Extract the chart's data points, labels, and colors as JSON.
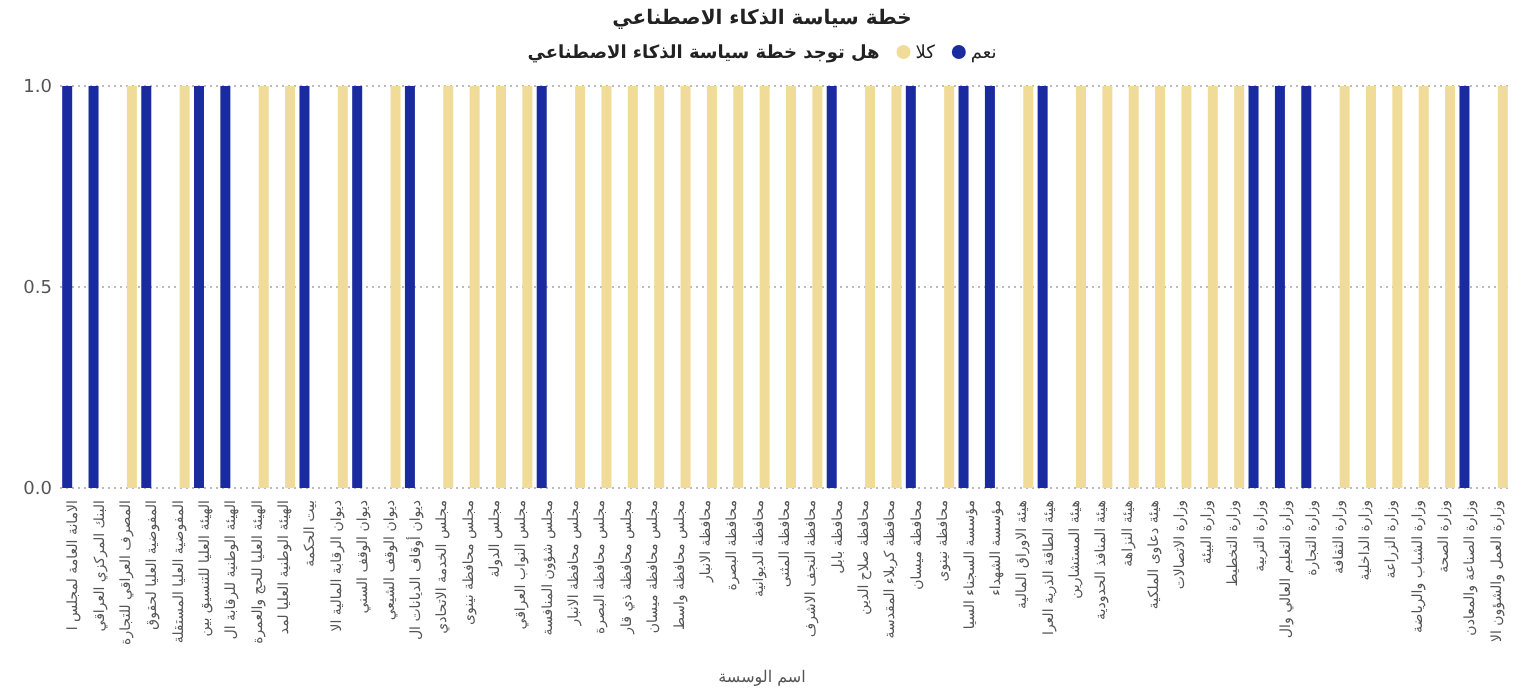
{
  "chart_data": {
    "type": "bar",
    "title": "خطة سياسة الذكاء الاصطناعي",
    "legend_title": "هل توجد خطة سياسة الذكاء الاصطناعي",
    "xlabel": "اسم الوسسة",
    "categories": [
      "الامانة العامة لمجلس ا",
      "البنك المركزي العراقي",
      "المصرف العراقي للتجارة",
      "المفوضية العليا لحقوق",
      "المفوضية العليا المستقلة",
      "الهيئة العليا للتنسيق بين",
      "الهيئة الوطنية للرقابة ال",
      "الهيئة العليا للحج والعمرة",
      "الهيئة الوطنية العليا لمد",
      "بيت الحكمة",
      "ديوان الرقابة المالية الا",
      "ديوان الوقف السني",
      "ديوان الوقف الشيعي",
      "ديوان أوقاف الديانات ال",
      "مجلس الخدمة الاتحادي",
      "مجلس محافظة نينوى",
      "مجلس الدولة",
      "مجلس النواب العراقي",
      "مجلس شؤون المنافسة",
      "مجلس محافظة الانبار",
      "مجلس محافظة البصرة",
      "مجلس محافظة ذي قار",
      "مجلس محافظة ميسان",
      "مجلس محافظة واسط",
      "محافظة الانبار",
      "محافظة البصرة",
      "محافظة الديوانية",
      "محافظة المثنى",
      "محافظة النجف الاشرف",
      "محافظة بابل",
      "محافظة صلاح الدين",
      "محافظة كربلاء المقدسة",
      "محافظة ميسان",
      "محافظة نينوى",
      "مؤسسة السجناء السيا",
      "مؤسسة الشهداء",
      "هيئة الاوراق المالية",
      "هيئة الطاقة الذرية العرا",
      "هيئة المستشارين",
      "هيئة المنافذ الحدودية",
      "هيئة النزاهة",
      "هيئة دعاوى الملكية",
      "وزارة الاتصالات",
      "وزارة البيئة",
      "وزارة التخطيط",
      "وزارة التربية",
      "وزارة التعليم العالي وال",
      "وزارة التجارة",
      "وزارة الثقافة",
      "وزارة الداخلية",
      "وزارة الزراعة",
      "وزارة الشباب والرياضة",
      "وزارة الصحة",
      "وزارة الصناعة والمعادن",
      "وزارة العمل والشؤون الا"
    ],
    "series": [
      {
        "name": "نعم",
        "color": "#1a2ba0",
        "values": [
          1,
          1,
          null,
          1,
          null,
          1,
          1,
          null,
          null,
          1,
          null,
          1,
          null,
          1,
          null,
          null,
          null,
          null,
          1,
          null,
          null,
          null,
          null,
          null,
          null,
          null,
          null,
          null,
          null,
          1,
          null,
          null,
          1,
          null,
          1,
          1,
          null,
          1,
          null,
          null,
          null,
          null,
          null,
          null,
          null,
          1,
          1,
          1,
          null,
          null,
          null,
          null,
          null,
          1,
          null
        ]
      },
      {
        "name": "كلا",
        "color": "#f0dc98",
        "values": [
          null,
          null,
          1,
          null,
          1,
          null,
          null,
          1,
          1,
          null,
          1,
          null,
          1,
          null,
          1,
          1,
          1,
          1,
          null,
          1,
          1,
          1,
          1,
          1,
          1,
          1,
          1,
          1,
          1,
          null,
          1,
          1,
          null,
          1,
          null,
          null,
          1,
          null,
          1,
          1,
          1,
          1,
          1,
          1,
          1,
          null,
          null,
          null,
          1,
          1,
          1,
          1,
          1,
          null,
          1
        ]
      }
    ],
    "ylim": [
      0,
      1
    ],
    "yticks": [
      {
        "value": 0,
        "label": "0.0"
      },
      {
        "value": 0.5,
        "label": "0.5"
      },
      {
        "value": 1,
        "label": "1.0"
      }
    ],
    "grid": "y",
    "legend": "top"
  }
}
